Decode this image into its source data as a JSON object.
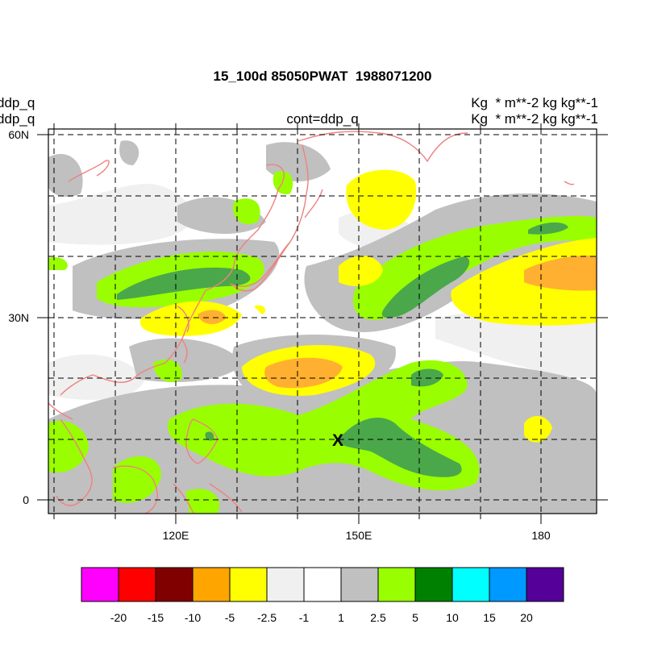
{
  "header": {
    "title": "15_100d 85050PWAT  1988071200",
    "left_line1": "ddp_q",
    "left_line2": "ddp_q",
    "center": "cont=ddp_q",
    "right_line1": "Kg  * m**-2 kg kg**-1",
    "right_line2": "Kg  * m**-2 kg kg**-1"
  },
  "map": {
    "lat_labels": [
      "60N",
      "30N",
      "0"
    ],
    "lon_labels": [
      "120E",
      "150E",
      "180"
    ],
    "marker": "X",
    "coastline_color": "#f08080"
  },
  "colorbar": {
    "colors": [
      "#ff00ff",
      "#ff0000",
      "#800000",
      "#ffa500",
      "#ffff00",
      "#f0f0f0",
      "#ffffff",
      "#c0c0c0",
      "#99ff00",
      "#008000",
      "#00ffff",
      "#0099ff",
      "#550099"
    ],
    "labels": [
      "-20",
      "-15",
      "-10",
      "-5",
      "-2.5",
      "-1",
      "1",
      "2.5",
      "5",
      "10",
      "15",
      "20"
    ]
  }
}
